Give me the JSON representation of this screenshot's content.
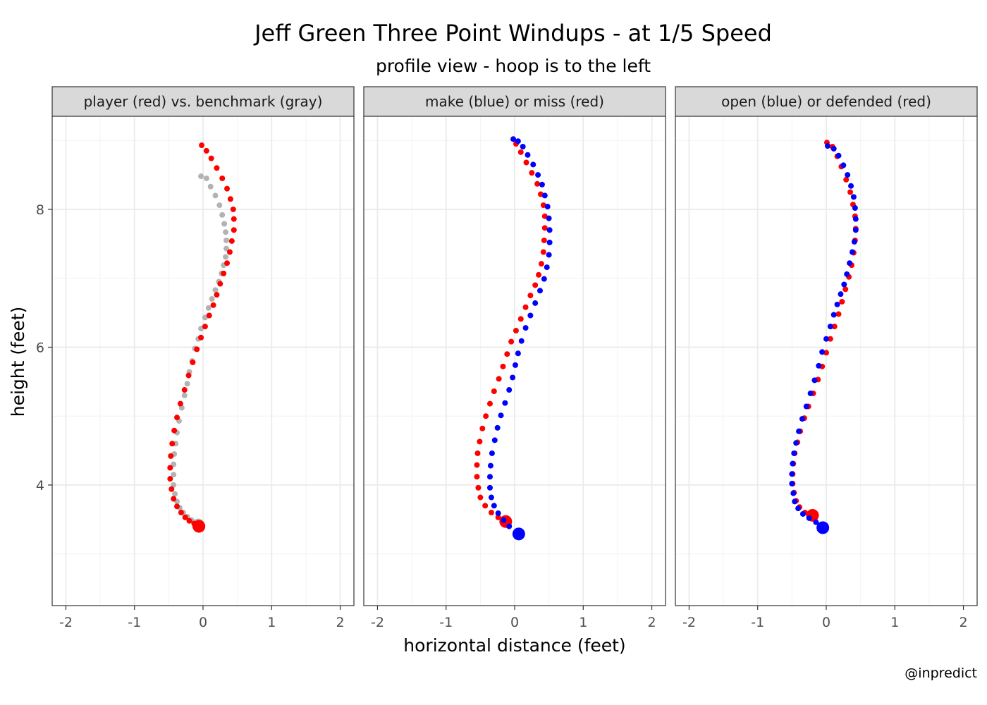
{
  "chart_data": {
    "type": "scatter",
    "title": "Jeff Green Three Point Windups - at 1/5 Speed",
    "subtitle": "profile view - hoop is to the left",
    "xlabel": "horizontal distance (feet)",
    "ylabel": "height (feet)",
    "caption": "@inpredict",
    "xlim": [
      -2.2,
      2.2
    ],
    "ylim": [
      2.25,
      9.35
    ],
    "x_ticks": [
      -2,
      -1,
      0,
      1,
      2
    ],
    "x_tick_labels": [
      "-2",
      "-1",
      "0",
      "1",
      "2"
    ],
    "y_ticks": [
      4,
      6,
      8
    ],
    "y_tick_labels": [
      "4",
      "6",
      "8"
    ],
    "grid": true,
    "colors": {
      "red": "#ff0000",
      "blue": "#0000ff",
      "gray": "#b3b3b3",
      "strip": "#d9d9d9",
      "grid": "#ebebeb"
    },
    "panels": [
      {
        "label": "player (red) vs. benchmark (gray)",
        "series": [
          {
            "color": "gray",
            "start": [
              -0.07,
              3.42
            ],
            "points": [
              [
                -0.1,
                3.45
              ],
              [
                -0.17,
                3.49
              ],
              [
                -0.23,
                3.54
              ],
              [
                -0.29,
                3.6
              ],
              [
                -0.34,
                3.67
              ],
              [
                -0.38,
                3.76
              ],
              [
                -0.41,
                3.87
              ],
              [
                -0.43,
                4.0
              ],
              [
                -0.43,
                4.15
              ],
              [
                -0.43,
                4.3
              ],
              [
                -0.42,
                4.45
              ],
              [
                -0.4,
                4.6
              ],
              [
                -0.38,
                4.76
              ],
              [
                -0.35,
                4.93
              ],
              [
                -0.31,
                5.12
              ],
              [
                -0.27,
                5.3
              ],
              [
                -0.23,
                5.47
              ],
              [
                -0.2,
                5.64
              ],
              [
                -0.16,
                5.8
              ],
              [
                -0.12,
                5.98
              ],
              [
                -0.07,
                6.12
              ],
              [
                -0.03,
                6.27
              ],
              [
                0.03,
                6.43
              ],
              [
                0.08,
                6.57
              ],
              [
                0.13,
                6.7
              ],
              [
                0.18,
                6.83
              ],
              [
                0.23,
                6.95
              ],
              [
                0.27,
                7.07
              ],
              [
                0.3,
                7.19
              ],
              [
                0.33,
                7.31
              ],
              [
                0.34,
                7.43
              ],
              [
                0.34,
                7.55
              ],
              [
                0.33,
                7.67
              ],
              [
                0.31,
                7.79
              ],
              [
                0.28,
                7.92
              ],
              [
                0.24,
                8.06
              ],
              [
                0.18,
                8.2
              ],
              [
                0.11,
                8.33
              ],
              [
                0.05,
                8.45
              ],
              [
                -0.03,
                8.48
              ]
            ]
          },
          {
            "color": "red",
            "start": [
              -0.06,
              3.4
            ],
            "points": [
              [
                -0.13,
                3.44
              ],
              [
                -0.2,
                3.48
              ],
              [
                -0.26,
                3.53
              ],
              [
                -0.32,
                3.6
              ],
              [
                -0.38,
                3.69
              ],
              [
                -0.43,
                3.8
              ],
              [
                -0.46,
                3.94
              ],
              [
                -0.48,
                4.09
              ],
              [
                -0.48,
                4.25
              ],
              [
                -0.47,
                4.42
              ],
              [
                -0.45,
                4.6
              ],
              [
                -0.42,
                4.79
              ],
              [
                -0.38,
                4.98
              ],
              [
                -0.33,
                5.18
              ],
              [
                -0.27,
                5.38
              ],
              [
                -0.21,
                5.59
              ],
              [
                -0.15,
                5.78
              ],
              [
                -0.09,
                5.97
              ],
              [
                -0.03,
                6.14
              ],
              [
                0.03,
                6.3
              ],
              [
                0.09,
                6.46
              ],
              [
                0.15,
                6.61
              ],
              [
                0.2,
                6.76
              ],
              [
                0.25,
                6.92
              ],
              [
                0.3,
                7.07
              ],
              [
                0.35,
                7.22
              ],
              [
                0.39,
                7.38
              ],
              [
                0.42,
                7.54
              ],
              [
                0.45,
                7.7
              ],
              [
                0.45,
                7.86
              ],
              [
                0.44,
                8.0
              ],
              [
                0.4,
                8.15
              ],
              [
                0.35,
                8.3
              ],
              [
                0.28,
                8.45
              ],
              [
                0.2,
                8.6
              ],
              [
                0.12,
                8.74
              ],
              [
                0.05,
                8.85
              ],
              [
                -0.02,
                8.93
              ]
            ]
          }
        ]
      },
      {
        "label": "make (blue) or miss (red)",
        "series": [
          {
            "color": "red",
            "start": [
              -0.13,
              3.47
            ],
            "points": [
              [
                -0.24,
                3.53
              ],
              [
                -0.34,
                3.6
              ],
              [
                -0.43,
                3.7
              ],
              [
                -0.5,
                3.82
              ],
              [
                -0.53,
                3.96
              ],
              [
                -0.55,
                4.12
              ],
              [
                -0.55,
                4.29
              ],
              [
                -0.54,
                4.46
              ],
              [
                -0.51,
                4.63
              ],
              [
                -0.47,
                4.82
              ],
              [
                -0.42,
                5.0
              ],
              [
                -0.36,
                5.18
              ],
              [
                -0.3,
                5.36
              ],
              [
                -0.23,
                5.54
              ],
              [
                -0.17,
                5.72
              ],
              [
                -0.11,
                5.9
              ],
              [
                -0.05,
                6.08
              ],
              [
                0.02,
                6.24
              ],
              [
                0.09,
                6.41
              ],
              [
                0.16,
                6.58
              ],
              [
                0.23,
                6.75
              ],
              [
                0.3,
                6.9
              ],
              [
                0.35,
                7.05
              ],
              [
                0.39,
                7.21
              ],
              [
                0.42,
                7.38
              ],
              [
                0.43,
                7.55
              ],
              [
                0.44,
                7.73
              ],
              [
                0.44,
                7.9
              ],
              [
                0.42,
                8.06
              ],
              [
                0.38,
                8.22
              ],
              [
                0.33,
                8.37
              ],
              [
                0.25,
                8.53
              ],
              [
                0.17,
                8.68
              ],
              [
                0.09,
                8.83
              ],
              [
                0.02,
                8.95
              ]
            ]
          },
          {
            "color": "blue",
            "start": [
              0.06,
              3.29
            ],
            "points": [
              [
                -0.08,
                3.4
              ],
              [
                -0.16,
                3.49
              ],
              [
                -0.24,
                3.59
              ],
              [
                -0.3,
                3.7
              ],
              [
                -0.34,
                3.82
              ],
              [
                -0.36,
                3.96
              ],
              [
                -0.36,
                4.12
              ],
              [
                -0.35,
                4.28
              ],
              [
                -0.33,
                4.46
              ],
              [
                -0.29,
                4.65
              ],
              [
                -0.25,
                4.83
              ],
              [
                -0.2,
                5.01
              ],
              [
                -0.14,
                5.19
              ],
              [
                -0.08,
                5.38
              ],
              [
                -0.03,
                5.56
              ],
              [
                0.01,
                5.74
              ],
              [
                0.05,
                5.91
              ],
              [
                0.1,
                6.09
              ],
              [
                0.16,
                6.28
              ],
              [
                0.23,
                6.46
              ],
              [
                0.3,
                6.64
              ],
              [
                0.37,
                6.82
              ],
              [
                0.43,
                6.99
              ],
              [
                0.47,
                7.16
              ],
              [
                0.5,
                7.34
              ],
              [
                0.51,
                7.52
              ],
              [
                0.51,
                7.7
              ],
              [
                0.5,
                7.87
              ],
              [
                0.48,
                8.04
              ],
              [
                0.44,
                8.2
              ],
              [
                0.4,
                8.36
              ],
              [
                0.34,
                8.5
              ],
              [
                0.27,
                8.65
              ],
              [
                0.19,
                8.79
              ],
              [
                0.12,
                8.91
              ],
              [
                0.05,
                8.99
              ],
              [
                -0.02,
                9.02
              ]
            ]
          }
        ]
      },
      {
        "label": "open (blue) or defended (red)",
        "series": [
          {
            "color": "red",
            "start": [
              -0.2,
              3.56
            ],
            "points": [
              [
                -0.31,
                3.6
              ],
              [
                -0.39,
                3.68
              ],
              [
                -0.44,
                3.77
              ],
              [
                -0.47,
                3.89
              ],
              [
                -0.49,
                4.02
              ],
              [
                -0.49,
                4.16
              ],
              [
                -0.48,
                4.31
              ],
              [
                -0.46,
                4.46
              ],
              [
                -0.42,
                4.62
              ],
              [
                -0.38,
                4.78
              ],
              [
                -0.32,
                4.97
              ],
              [
                -0.26,
                5.14
              ],
              [
                -0.19,
                5.33
              ],
              [
                -0.12,
                5.53
              ],
              [
                -0.06,
                5.72
              ],
              [
                0.0,
                5.92
              ],
              [
                0.06,
                6.12
              ],
              [
                0.12,
                6.3
              ],
              [
                0.18,
                6.48
              ],
              [
                0.23,
                6.66
              ],
              [
                0.28,
                6.84
              ],
              [
                0.33,
                7.02
              ],
              [
                0.37,
                7.19
              ],
              [
                0.4,
                7.37
              ],
              [
                0.42,
                7.55
              ],
              [
                0.43,
                7.72
              ],
              [
                0.42,
                7.9
              ],
              [
                0.39,
                8.07
              ],
              [
                0.35,
                8.25
              ],
              [
                0.29,
                8.43
              ],
              [
                0.22,
                8.62
              ],
              [
                0.16,
                8.77
              ],
              [
                0.09,
                8.91
              ],
              [
                0.01,
                8.97
              ]
            ]
          },
          {
            "color": "blue",
            "start": [
              -0.05,
              3.38
            ],
            "points": [
              [
                -0.15,
                3.46
              ],
              [
                -0.25,
                3.52
              ],
              [
                -0.34,
                3.58
              ],
              [
                -0.41,
                3.66
              ],
              [
                -0.46,
                3.76
              ],
              [
                -0.48,
                3.88
              ],
              [
                -0.5,
                4.02
              ],
              [
                -0.5,
                4.16
              ],
              [
                -0.49,
                4.31
              ],
              [
                -0.47,
                4.46
              ],
              [
                -0.44,
                4.61
              ],
              [
                -0.4,
                4.78
              ],
              [
                -0.35,
                4.96
              ],
              [
                -0.29,
                5.14
              ],
              [
                -0.23,
                5.33
              ],
              [
                -0.17,
                5.52
              ],
              [
                -0.11,
                5.73
              ],
              [
                -0.06,
                5.93
              ],
              [
                0.0,
                6.12
              ],
              [
                0.06,
                6.3
              ],
              [
                0.11,
                6.47
              ],
              [
                0.16,
                6.62
              ],
              [
                0.21,
                6.77
              ],
              [
                0.26,
                6.91
              ],
              [
                0.3,
                7.06
              ],
              [
                0.34,
                7.22
              ],
              [
                0.38,
                7.38
              ],
              [
                0.41,
                7.53
              ],
              [
                0.43,
                7.7
              ],
              [
                0.43,
                7.86
              ],
              [
                0.42,
                8.02
              ],
              [
                0.4,
                8.18
              ],
              [
                0.36,
                8.34
              ],
              [
                0.31,
                8.5
              ],
              [
                0.25,
                8.64
              ],
              [
                0.18,
                8.78
              ],
              [
                0.11,
                8.88
              ],
              [
                0.02,
                8.92
              ]
            ]
          }
        ]
      }
    ]
  }
}
